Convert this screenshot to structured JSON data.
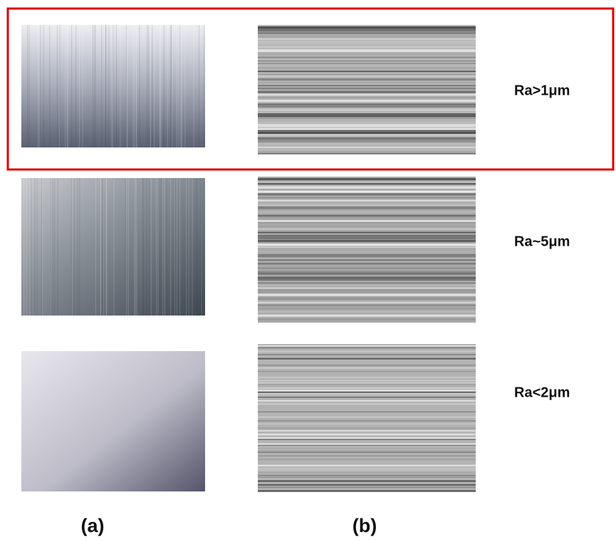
{
  "rows": [
    {
      "label": "Ra>1μm"
    },
    {
      "label": "Ra~5μm"
    },
    {
      "label": "Ra<2μm"
    }
  ],
  "columns": [
    "(a)",
    "(b)"
  ]
}
